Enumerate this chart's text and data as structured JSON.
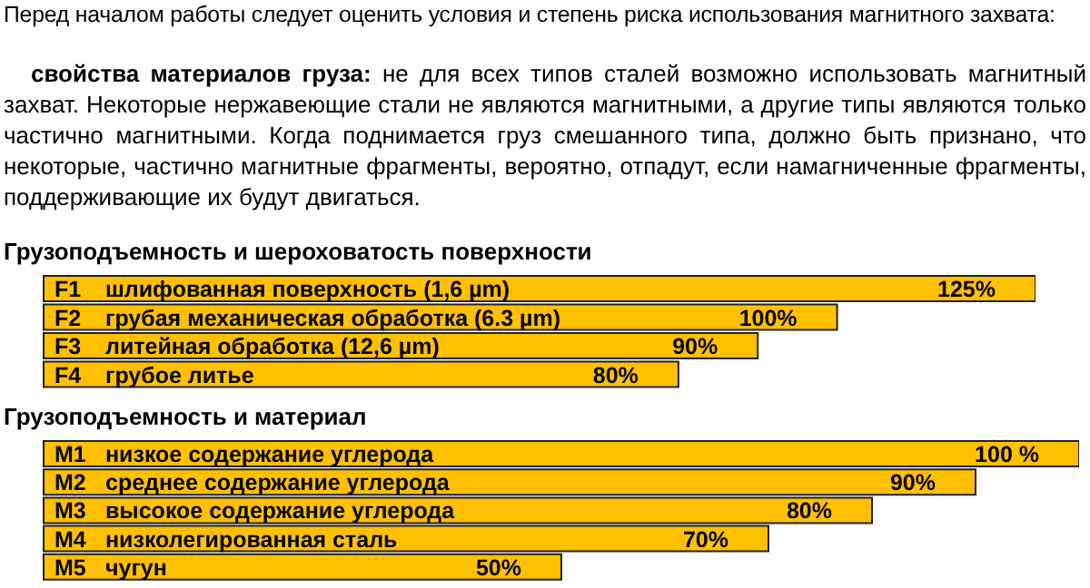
{
  "chart_data": [
    {
      "type": "bar",
      "orientation": "horizontal",
      "title": "Грузоподъемность и шероховатость поверхности",
      "annotations": [
        "Перед началом работы следует оценить условия и степень риска использования магнитного захвата:",
        "свойства материалов груза:",
        "не для всех типов сталей возможно использовать магнитный захват. Некоторые нержавеющие стали не являются магнитными, а другие типы являются только частично магнитными. Когда поднимается груз смешанного типа, должно быть признано, что некоторые, частично магнитные фрагменты, вероятно, отпадут, если намагниченные фрагменты, поддерживающие их будут двигаться."
      ],
      "categories": [
        "F1 шлифованная поверхность (1,6 µm)",
        "F2 грубая механическая обработка (6.3 µm)",
        "F3 литейная обработка (12,6 µm)",
        "F4 грубое литье"
      ],
      "values": [
        125,
        100,
        90,
        80
      ],
      "value_labels": [
        "125%",
        "100%",
        "90%",
        "80%"
      ],
      "color": "#ffc000"
    },
    {
      "type": "bar",
      "orientation": "horizontal",
      "title": "Грузоподъемность и материал",
      "categories": [
        "M1 низкое содержание углерода",
        "M2 среднее содержание углерода",
        "M3 высокое содержание углерода",
        "M4 низколегированная сталь",
        "M5 чугун"
      ],
      "values": [
        100,
        90,
        80,
        70,
        50
      ],
      "value_labels": [
        "100 %",
        "90%",
        "80%",
        "70%",
        "50%"
      ],
      "color": "#ffc000"
    }
  ]
}
